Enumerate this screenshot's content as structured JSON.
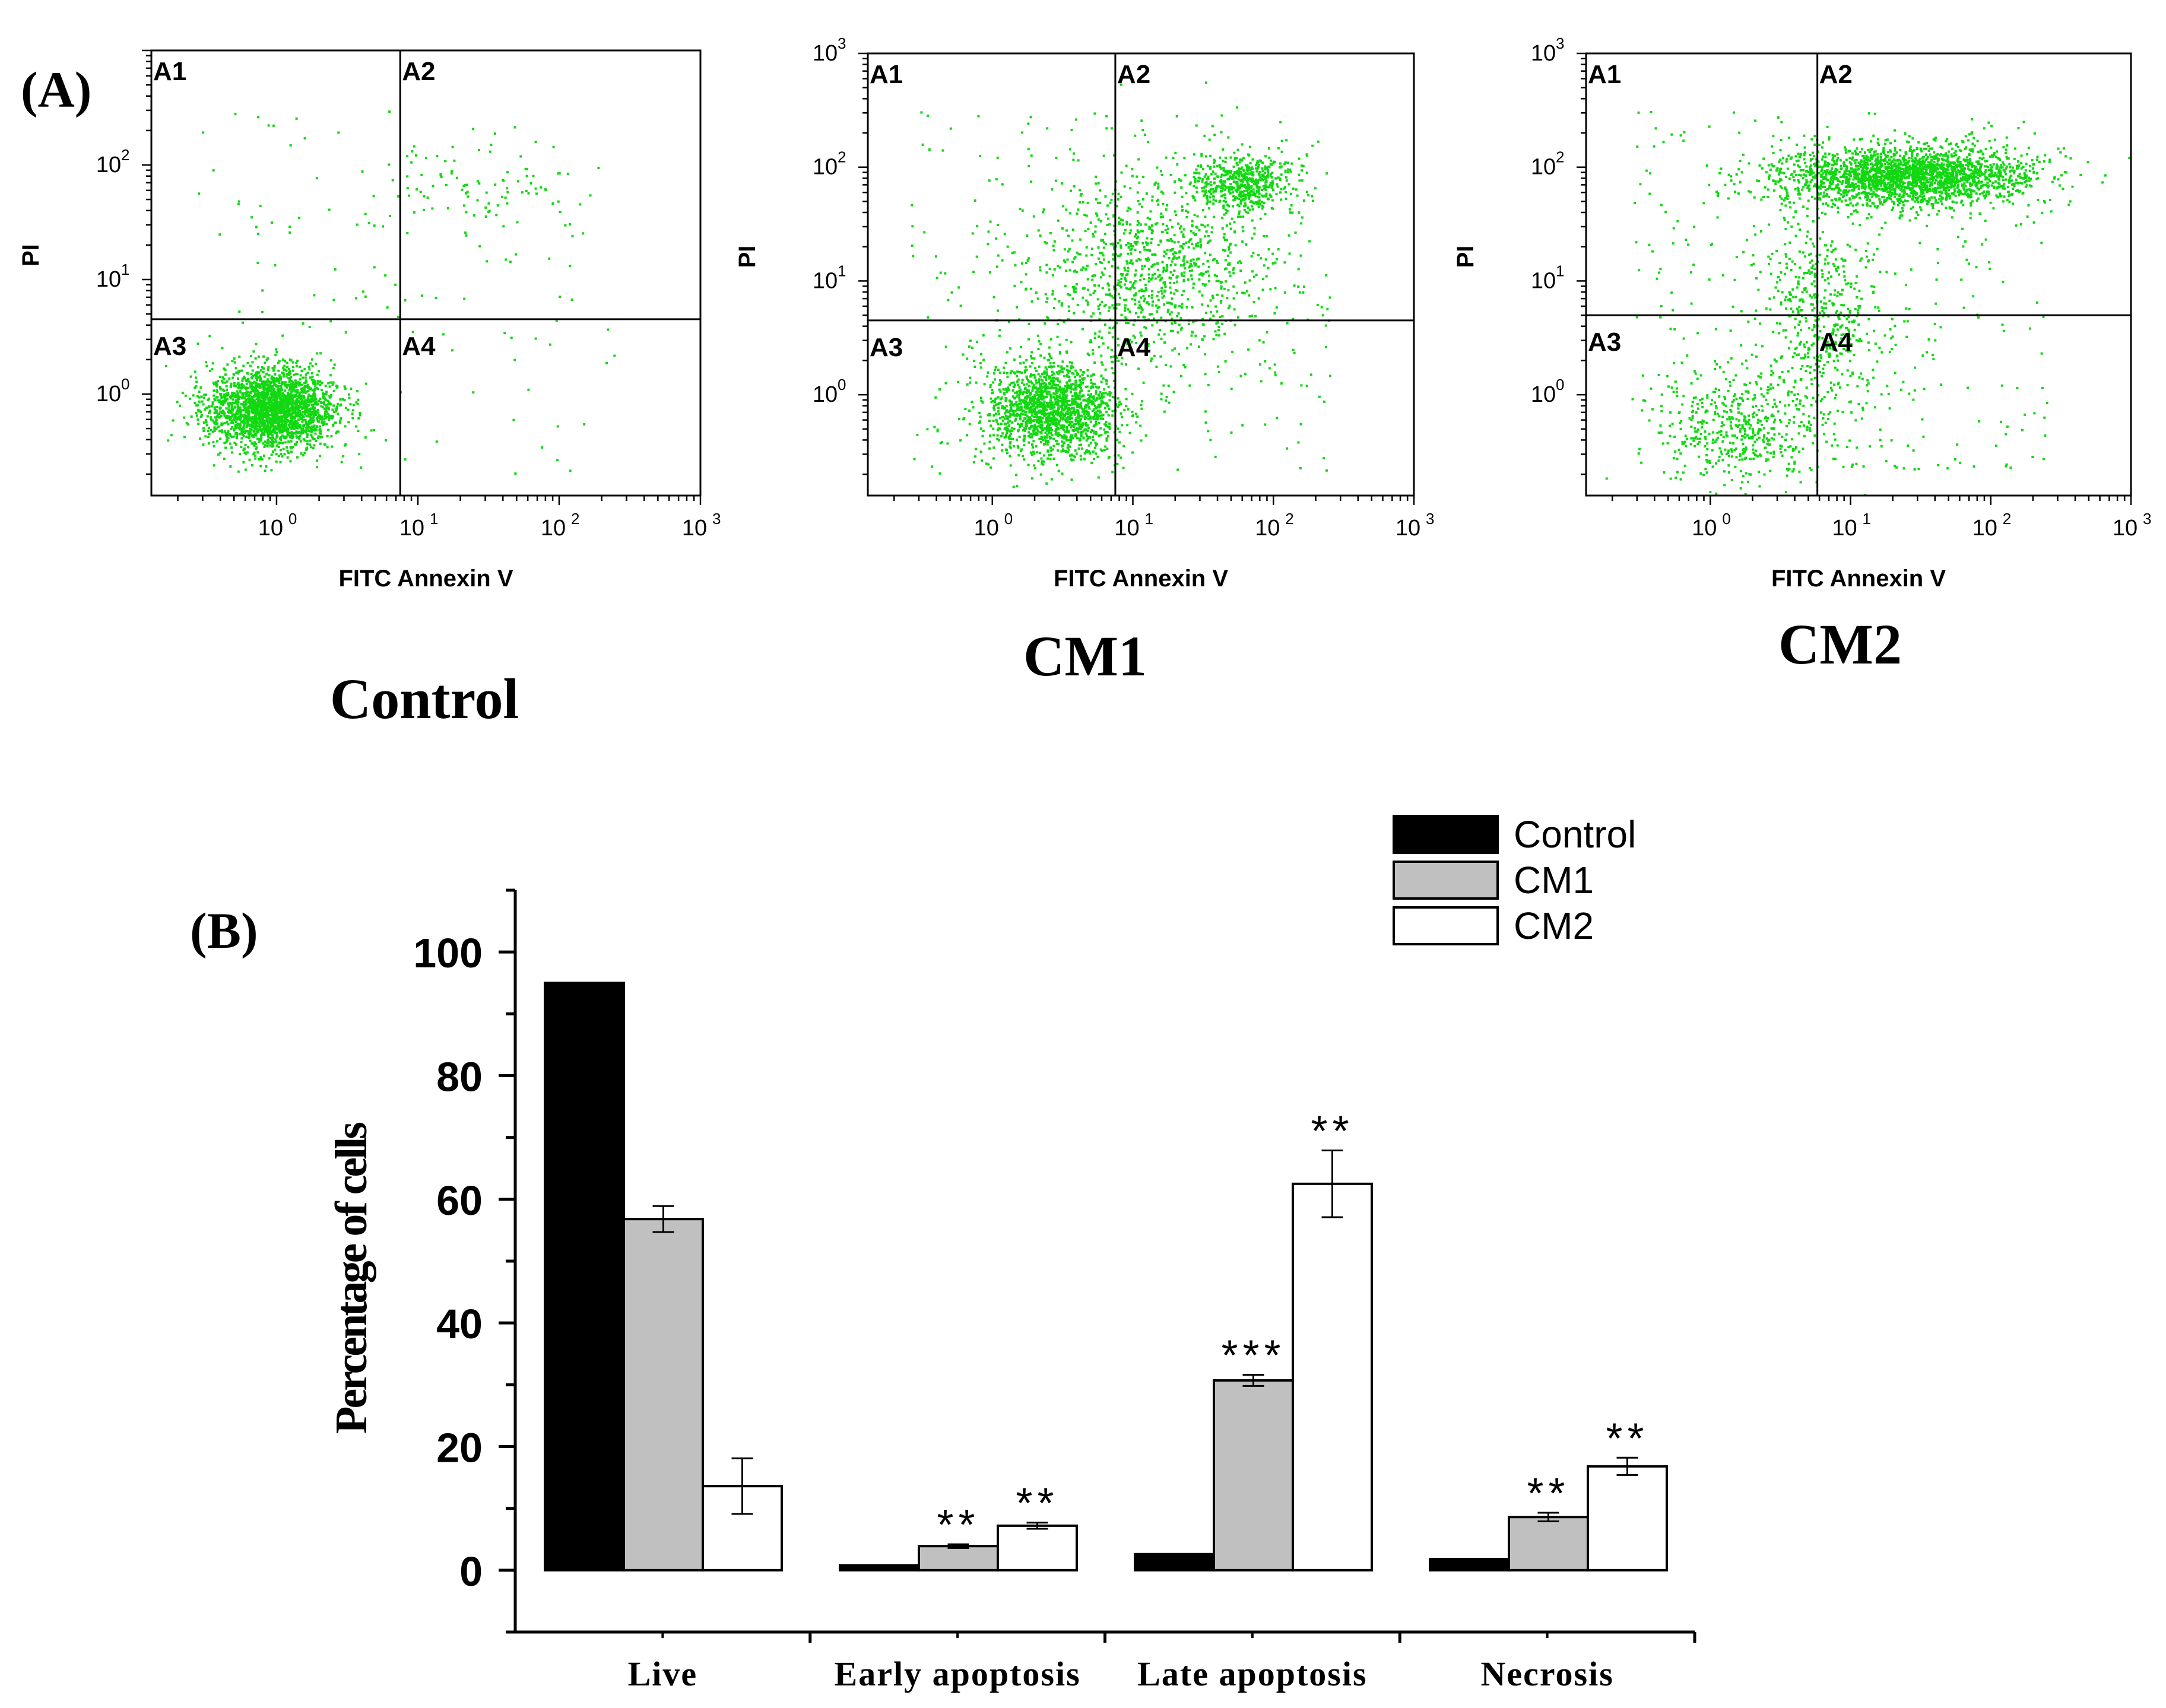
{
  "panel_a_label": "(A)",
  "panel_b_label": "(B)",
  "chart_data": [
    {
      "type": "scatter",
      "name": "Control",
      "title": "Control",
      "xlabel": "FITC Annexin V",
      "ylabel": "PI",
      "xscale": "log",
      "yscale": "log",
      "xlim": [
        0.13,
        1000
      ],
      "ylim": [
        0.13,
        1000
      ],
      "x_ticks": [
        "10",
        "10",
        "10",
        "10"
      ],
      "x_tick_exponents": [
        "0",
        "1",
        "2",
        "3"
      ],
      "y_ticks": [
        "10",
        "10",
        "10"
      ],
      "y_tick_exponents": [
        "0",
        "1",
        "2"
      ],
      "quadrant_gate": {
        "x": 7.5,
        "y": 4.5
      },
      "quadrant_labels": [
        "A1",
        "A2",
        "A3",
        "A4"
      ],
      "clusters": [
        {
          "x": 0.9,
          "y": 0.75,
          "spread_x": 0.22,
          "spread_y": 0.18,
          "n": 2400
        },
        {
          "x": 28,
          "y": 70,
          "spread_x": 0.35,
          "spread_y": 0.22,
          "n": 90
        }
      ],
      "background_points": 130
    },
    {
      "type": "scatter",
      "name": "CM1",
      "title": "CM1",
      "xlabel": "FITC Annexin V",
      "ylabel": "PI",
      "xscale": "log",
      "yscale": "log",
      "xlim": [
        0.13,
        1000
      ],
      "ylim": [
        0.13,
        1000
      ],
      "x_ticks": [
        "10",
        "10",
        "10",
        "10"
      ],
      "x_tick_exponents": [
        "0",
        "1",
        "2",
        "3"
      ],
      "y_ticks": [
        "10",
        "10",
        "10",
        "10"
      ],
      "y_tick_exponents": [
        "0",
        "1",
        "2",
        "3"
      ],
      "quadrant_gate": {
        "x": 7.5,
        "y": 4.5
      },
      "quadrant_labels": [
        "A1",
        "A2",
        "A3",
        "A4"
      ],
      "clusters": [
        {
          "x": 2.6,
          "y": 0.75,
          "spread_x": 0.24,
          "spread_y": 0.2,
          "n": 1600
        },
        {
          "x": 60,
          "y": 75,
          "spread_x": 0.18,
          "spread_y": 0.12,
          "n": 550
        },
        {
          "x": 14,
          "y": 14,
          "spread_x": 0.42,
          "spread_y": 0.42,
          "n": 1000
        }
      ],
      "background_points": 260
    },
    {
      "type": "scatter",
      "name": "CM2",
      "title": "CM2",
      "xlabel": "FITC Annexin V",
      "ylabel": "PI",
      "xscale": "log",
      "yscale": "log",
      "xlim": [
        0.13,
        1000
      ],
      "ylim": [
        0.13,
        1000
      ],
      "x_ticks": [
        "10",
        "10",
        "10",
        "10"
      ],
      "x_tick_exponents": [
        "0",
        "1",
        "2",
        "3"
      ],
      "y_ticks": [
        "10",
        "10",
        "10",
        "10"
      ],
      "y_tick_exponents": [
        "0",
        "1",
        "2",
        "3"
      ],
      "quadrant_gate": {
        "x": 5.8,
        "y": 5.0
      },
      "quadrant_labels": [
        "A1",
        "A2",
        "A3",
        "A4"
      ],
      "clusters": [
        {
          "x": 25,
          "y": 85,
          "spread_x": 0.45,
          "spread_y": 0.13,
          "n": 2300
        },
        {
          "x": 1.6,
          "y": 0.5,
          "spread_x": 0.28,
          "spread_y": 0.25,
          "n": 450
        },
        {
          "x": 6,
          "y": 5,
          "spread_x": 0.22,
          "spread_y": 0.5,
          "n": 550
        }
      ],
      "background_points": 320
    },
    {
      "type": "bar",
      "name": "apoptosis-bar-chart",
      "categories": [
        "Live",
        "Early apoptosis",
        "Late apoptosis",
        "Necrosis"
      ],
      "series": [
        {
          "name": "Control",
          "color": "#000000",
          "values": [
            95,
            0.8,
            2.6,
            1.8
          ],
          "errors": [
            0,
            0,
            0,
            0
          ],
          "stars": [
            "",
            "",
            "",
            ""
          ]
        },
        {
          "name": "CM1",
          "color": "#c0c0c0",
          "values": [
            56.8,
            3.9,
            30.7,
            8.6
          ],
          "errors": [
            2.1,
            0.3,
            0.9,
            0.7
          ],
          "stars": [
            "",
            "**",
            "***",
            "**"
          ]
        },
        {
          "name": "CM2",
          "color": "#ffffff",
          "values": [
            13.6,
            7.2,
            62.5,
            16.8
          ],
          "errors": [
            4.5,
            0.5,
            5.4,
            1.4
          ],
          "stars": [
            "",
            "**",
            "**",
            "**"
          ]
        }
      ],
      "title": "",
      "xlabel": "",
      "ylabel": "Percentage of cells",
      "ylim": [
        -10,
        110
      ],
      "y_ticks": [
        0,
        20,
        40,
        60,
        80,
        100
      ],
      "legend": "top-right"
    }
  ]
}
